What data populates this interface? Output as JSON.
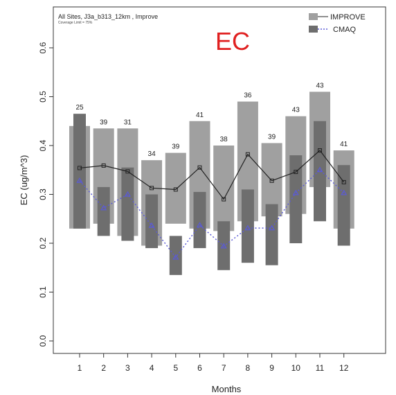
{
  "chart_data": {
    "type": "bar",
    "title": "EC",
    "title_color": "#e02020",
    "subtitle": "All Sites,  J3a_b313_12km , Improve",
    "note": "Coverage Limit = 75%",
    "xlabel": "Months",
    "ylabel": "EC (ug/m^3)",
    "ylim": [
      0,
      0.7
    ],
    "yticks": [
      "0.0",
      "0.1",
      "0.2",
      "0.3",
      "0.4",
      "0.5",
      "0.6"
    ],
    "categories": [
      "1",
      "2",
      "3",
      "4",
      "5",
      "6",
      "7",
      "8",
      "9",
      "10",
      "11",
      "12"
    ],
    "counts": [
      "25",
      "39",
      "31",
      "34",
      "39",
      "41",
      "38",
      "36",
      "39",
      "43",
      "43",
      "41"
    ],
    "grid": false,
    "legend_position": "top-right",
    "series": [
      {
        "name": "IMPROVE",
        "color": "#a0a0a0",
        "line_color": "#222222",
        "box_low": [
          0.23,
          0.24,
          0.215,
          0.195,
          0.24,
          0.23,
          0.225,
          0.245,
          0.255,
          0.26,
          0.315,
          0.23
        ],
        "box_high": [
          0.44,
          0.435,
          0.435,
          0.37,
          0.385,
          0.45,
          0.4,
          0.49,
          0.405,
          0.46,
          0.51,
          0.39
        ],
        "median": [
          0.354,
          0.359,
          0.347,
          0.313,
          0.31,
          0.355,
          0.29,
          0.382,
          0.328,
          0.346,
          0.39,
          0.325
        ]
      },
      {
        "name": "CMAQ",
        "color": "#6e6e6e",
        "line_color": "#5b5bd6",
        "box_low": [
          0.23,
          0.215,
          0.205,
          0.19,
          0.135,
          0.19,
          0.145,
          0.16,
          0.155,
          0.2,
          0.245,
          0.195
        ],
        "box_high": [
          0.465,
          0.315,
          0.355,
          0.3,
          0.215,
          0.305,
          0.245,
          0.31,
          0.28,
          0.38,
          0.45,
          0.36
        ],
        "median": [
          0.328,
          0.272,
          0.3,
          0.236,
          0.171,
          0.237,
          0.194,
          0.231,
          0.231,
          0.303,
          0.35,
          0.303
        ]
      }
    ]
  }
}
